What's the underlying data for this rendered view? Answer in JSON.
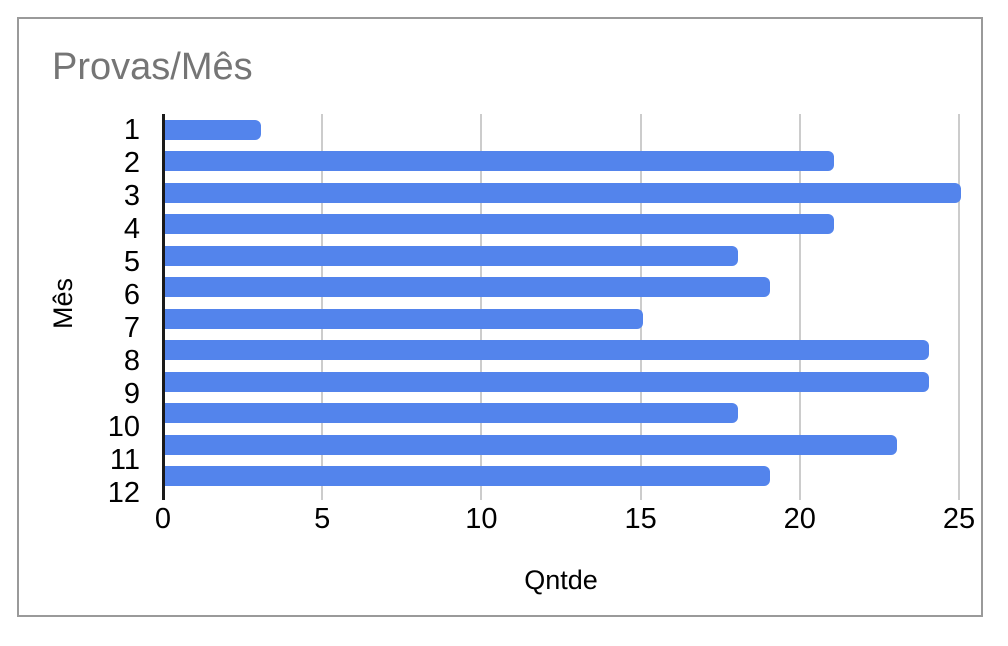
{
  "chart_data": {
    "type": "bar",
    "orientation": "horizontal",
    "title": "Provas/Mês",
    "xlabel": "Qntde",
    "ylabel": "Mês",
    "categories": [
      "1",
      "2",
      "3",
      "4",
      "5",
      "6",
      "7",
      "8",
      "9",
      "10",
      "11",
      "12"
    ],
    "values": [
      3,
      21,
      25,
      21,
      18,
      19,
      15,
      24,
      24,
      18,
      23,
      19
    ],
    "xlim": [
      0,
      25
    ],
    "x_ticks": [
      0,
      5,
      10,
      15,
      20,
      25
    ],
    "grid": "vertical-only",
    "legend": "none",
    "colors": {
      "bar": "#5384ec",
      "title_text": "#757575",
      "axis_text": "#000000",
      "gridline": "#cccccc",
      "axis_line": "#1a1a1a",
      "frame_border": "#9a9a9a",
      "background": "#ffffff"
    }
  }
}
